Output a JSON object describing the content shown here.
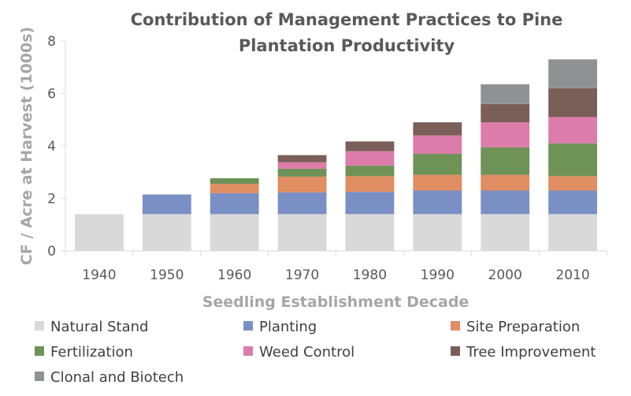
{
  "chart_data": {
    "type": "bar",
    "stacked": true,
    "title": "Contribution of Management Practices to Pine Plantation Productivity",
    "title_lines": [
      "Contribution of Management Practices to Pine",
      "Plantation Productivity"
    ],
    "xlabel": "Seedling Establishment Decade",
    "ylabel": "CF / Acre at Harvest (1000s)",
    "ylim": [
      0,
      8
    ],
    "yticks": [
      0,
      2,
      4,
      6,
      8
    ],
    "grid": false,
    "legend_position": "bottom",
    "categories": [
      "1940",
      "1950",
      "1960",
      "1970",
      "1980",
      "1990",
      "2000",
      "2010"
    ],
    "series": [
      {
        "name": "Natural Stand",
        "color": "#d9d9d9",
        "values": [
          1.4,
          1.4,
          1.4,
          1.4,
          1.4,
          1.4,
          1.4,
          1.4
        ]
      },
      {
        "name": "Planting",
        "color": "#7a8fc4",
        "values": [
          0,
          0.75,
          0.8,
          0.83,
          0.85,
          0.9,
          0.9,
          0.9
        ]
      },
      {
        "name": "Site Preparation",
        "color": "#e08d62",
        "values": [
          0,
          0,
          0.35,
          0.6,
          0.6,
          0.6,
          0.6,
          0.55
        ]
      },
      {
        "name": "Fertilization",
        "color": "#6f9257",
        "values": [
          0,
          0,
          0.22,
          0.3,
          0.4,
          0.8,
          1.05,
          1.25
        ]
      },
      {
        "name": "Weed Control",
        "color": "#dc7cab",
        "values": [
          0,
          0,
          0,
          0.25,
          0.55,
          0.7,
          0.95,
          1.0
        ]
      },
      {
        "name": "Tree Improvement",
        "color": "#7a5e58",
        "values": [
          0,
          0,
          0,
          0.27,
          0.37,
          0.5,
          0.7,
          1.1
        ]
      },
      {
        "name": "Clonal and Biotech",
        "color": "#8e9294",
        "values": [
          0,
          0,
          0,
          0,
          0,
          0,
          0.75,
          1.1
        ]
      }
    ]
  }
}
